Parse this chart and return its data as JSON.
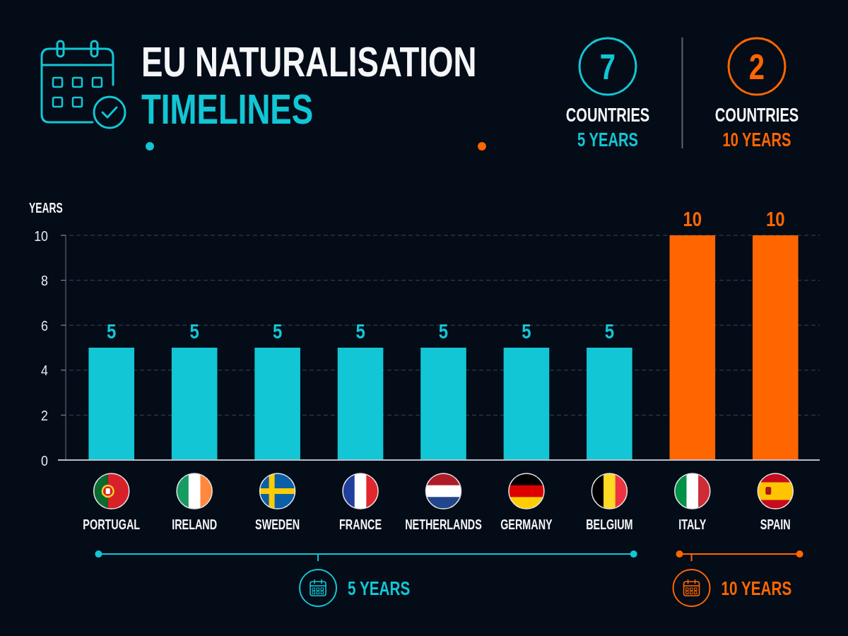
{
  "chart_data": {
    "type": "bar",
    "title": "EU NATURALISATION",
    "subtitle": "TIMELINES",
    "ylabel": "YEARS",
    "categories": [
      "PORTUGAL",
      "IRELAND",
      "SWEDEN",
      "FRANCE",
      "NETHERLANDS",
      "GERMANY",
      "BELGIUM",
      "ITALY",
      "SPAIN"
    ],
    "values": [
      5,
      5,
      5,
      5,
      5,
      5,
      5,
      10,
      10
    ],
    "colors": [
      "#12c6d5",
      "#12c6d5",
      "#12c6d5",
      "#12c6d5",
      "#12c6d5",
      "#12c6d5",
      "#12c6d5",
      "#ff6600",
      "#ff6600"
    ],
    "ylim": [
      0,
      10
    ],
    "yticks": [
      0,
      2,
      4,
      6,
      8,
      10
    ],
    "grid": "y",
    "data_labels": true,
    "annotations": [
      "7",
      "COUNTRIES",
      "5 YEARS",
      "2",
      "COUNTRIES",
      "10 YEARS",
      "5 YEARS",
      "10 YEARS"
    ]
  }
}
